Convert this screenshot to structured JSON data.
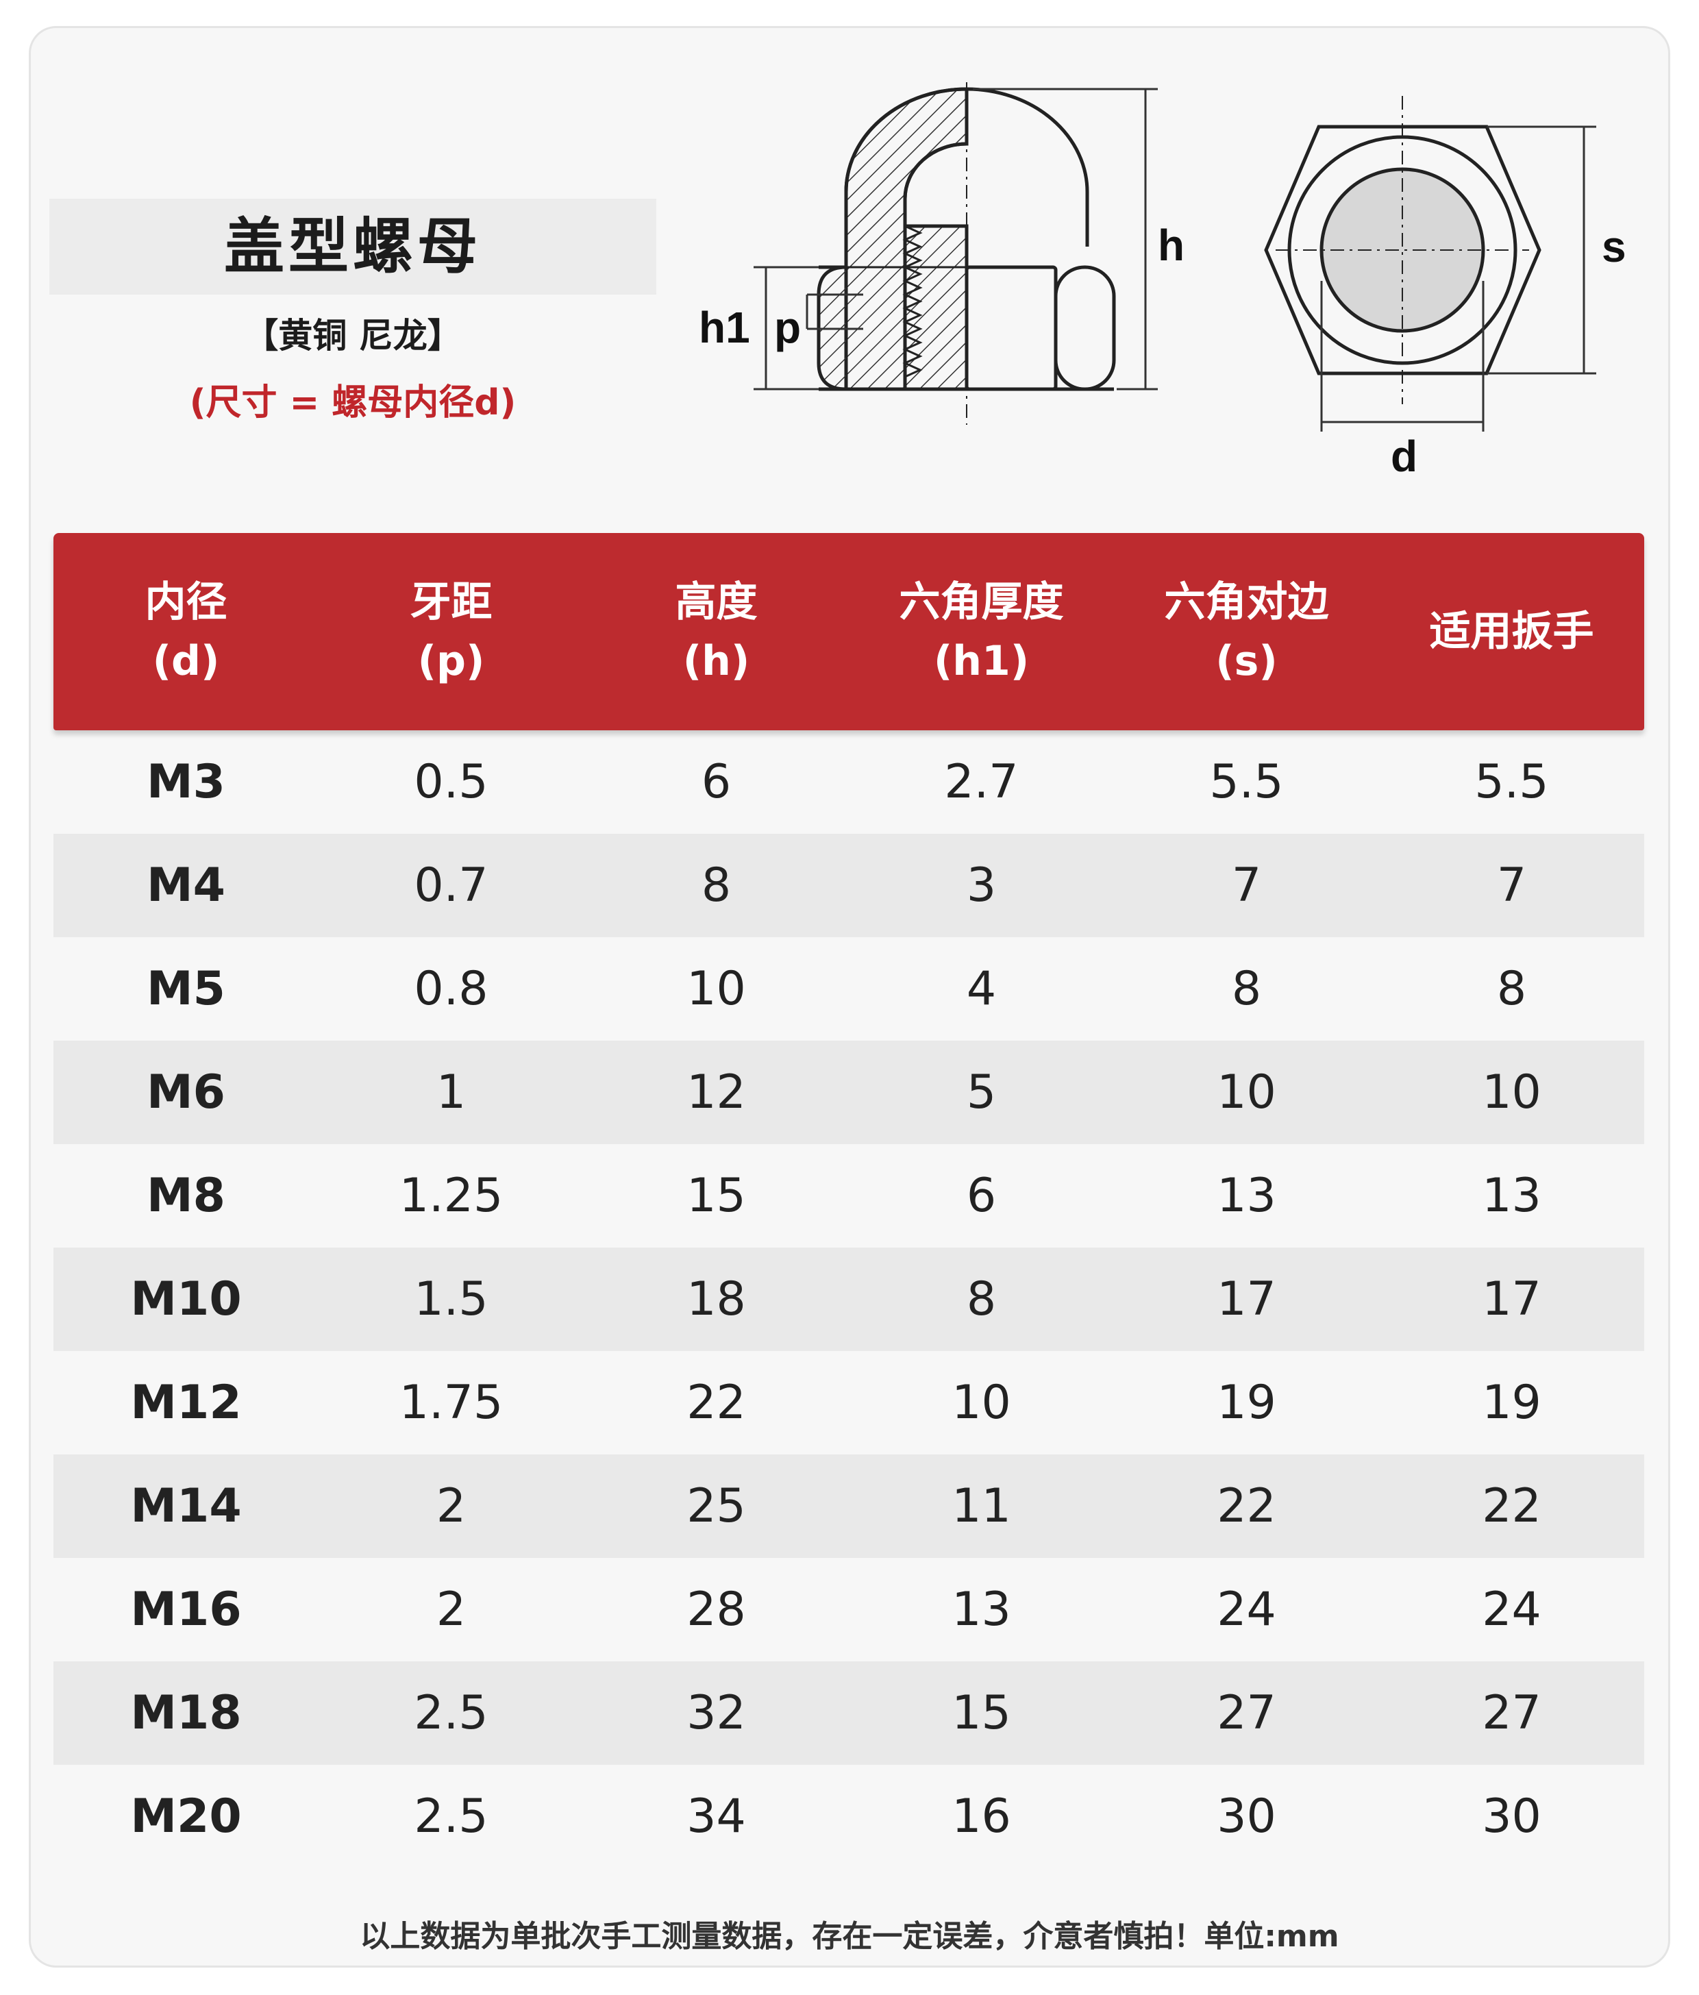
{
  "header": {
    "title": "盖型螺母",
    "subtitle": "【黄铜 尼龙】",
    "note": "(尺寸 = 螺母内径d)"
  },
  "diagram": {
    "label_h": "h",
    "label_h1": "h1",
    "label_p": "p",
    "label_s": "s",
    "label_d": "d"
  },
  "table": {
    "columns": [
      {
        "line1": "内径",
        "line2": "(d)"
      },
      {
        "line1": "牙距",
        "line2": "(p)"
      },
      {
        "line1": "高度",
        "line2": "(h)"
      },
      {
        "line1": "六角厚度",
        "line2": "(h1)"
      },
      {
        "line1": "六角对边",
        "line2": "(s)"
      },
      {
        "line1": "适用扳手",
        "line2": ""
      }
    ],
    "rows": [
      [
        "M3",
        "0.5",
        "6",
        "2.7",
        "5.5",
        "5.5"
      ],
      [
        "M4",
        "0.7",
        "8",
        "3",
        "7",
        "7"
      ],
      [
        "M5",
        "0.8",
        "10",
        "4",
        "8",
        "8"
      ],
      [
        "M6",
        "1",
        "12",
        "5",
        "10",
        "10"
      ],
      [
        "M8",
        "1.25",
        "15",
        "6",
        "13",
        "13"
      ],
      [
        "M10",
        "1.5",
        "18",
        "8",
        "17",
        "17"
      ],
      [
        "M12",
        "1.75",
        "22",
        "10",
        "19",
        "19"
      ],
      [
        "M14",
        "2",
        "25",
        "11",
        "22",
        "22"
      ],
      [
        "M16",
        "2",
        "28",
        "13",
        "24",
        "24"
      ],
      [
        "M18",
        "2.5",
        "32",
        "15",
        "27",
        "27"
      ],
      [
        "M20",
        "2.5",
        "34",
        "16",
        "30",
        "30"
      ]
    ]
  },
  "footer": "以上数据为单批次手工测量数据，存在一定误差，介意者慎拍！单位:mm",
  "colors": {
    "accent": "#bd2b2f",
    "note": "#c0262b"
  }
}
